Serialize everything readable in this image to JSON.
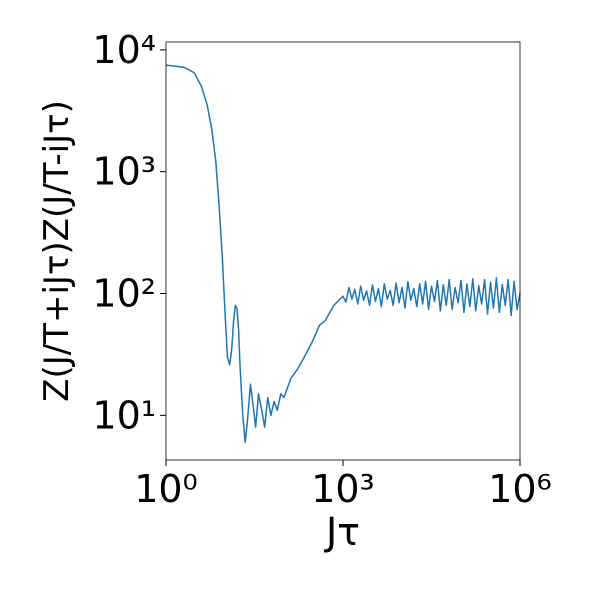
{
  "chart_data": {
    "type": "line",
    "xlabel": "Jτ",
    "ylabel": "Z(J/T+iJτ)Z(J/T-iJτ)",
    "log_x": true,
    "log_y": true,
    "xlim": [
      1,
      1000000
    ],
    "ylim": [
      4.3,
      11600
    ],
    "xticks": [
      {
        "value": 1,
        "label": "10⁰"
      },
      {
        "value": 1000,
        "label": "10³"
      },
      {
        "value": 1000000,
        "label": "10⁶"
      }
    ],
    "yticks": [
      {
        "value": 10,
        "label": "10¹"
      },
      {
        "value": 100,
        "label": "10²"
      },
      {
        "value": 1000,
        "label": "10³"
      },
      {
        "value": 10000,
        "label": "10⁴"
      }
    ],
    "x": [
      1,
      2,
      3,
      4,
      5,
      6,
      7,
      8,
      9,
      10,
      11,
      12,
      13,
      14,
      15,
      16,
      17,
      18,
      20,
      22,
      24,
      27,
      30,
      33,
      37,
      42,
      47,
      53,
      60,
      68,
      77,
      88,
      100,
      130,
      170,
      220,
      300,
      400,
      500,
      700,
      1000,
      1122,
      1259,
      1413,
      1585,
      1778,
      1995,
      2239,
      2512,
      2818,
      3162,
      3548,
      3981,
      4467,
      5012,
      5623,
      6310,
      7079,
      7943,
      8913,
      10000,
      11220,
      12589,
      14125,
      15849,
      17783,
      19953,
      22387,
      25119,
      28184,
      31623,
      35481,
      39811,
      44668,
      50119,
      56234,
      63096,
      70795,
      79433,
      89125,
      100000,
      112202,
      125893,
      141254,
      158489,
      177828,
      199526,
      223872,
      251189,
      281838,
      316228,
      354813,
      398107,
      446684,
      501187,
      562341,
      630957,
      707946,
      794328,
      891251,
      1000000
    ],
    "series": [
      {
        "name": "Z(J/T+iJτ)Z(J/T-iJτ)",
        "color": "#1f77b4",
        "values": [
          7500,
          7200,
          6500,
          5000,
          3500,
          2200,
          1200,
          500,
          200,
          70,
          30,
          26,
          35,
          60,
          80,
          75,
          50,
          25,
          10,
          6,
          9,
          18,
          12,
          8,
          15,
          11,
          8,
          14,
          10,
          13,
          11,
          15,
          14,
          20,
          24,
          30,
          40,
          55,
          60,
          80,
          95,
          85,
          112,
          90,
          108,
          82,
          115,
          88,
          105,
          80,
          118,
          86,
          110,
          78,
          120,
          90,
          106,
          80,
          122,
          84,
          112,
          76,
          125,
          88,
          110,
          78,
          120,
          82,
          126,
          74,
          115,
          86,
          128,
          72,
          118,
          80,
          130,
          74,
          112,
          84,
          128,
          70,
          120,
          78,
          132,
          72,
          116,
          82,
          130,
          68,
          124,
          76,
          134,
          70,
          118,
          80,
          130,
          66,
          126,
          74,
          100
        ]
      }
    ]
  }
}
